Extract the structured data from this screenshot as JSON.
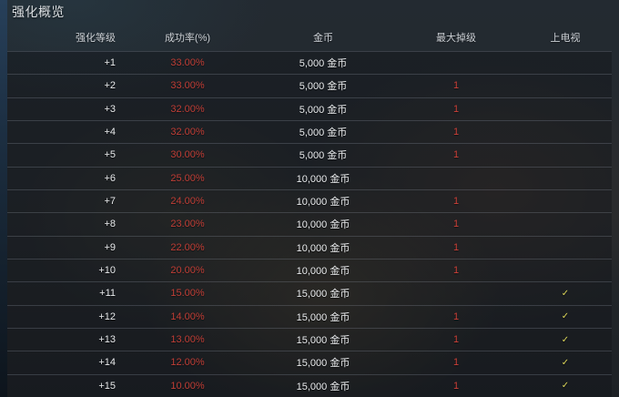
{
  "page": {
    "title": "强化概览"
  },
  "table": {
    "columns": [
      {
        "key": "level",
        "label": "强化等级"
      },
      {
        "key": "rate",
        "label": "成功率(%)"
      },
      {
        "key": "gold",
        "label": "金币"
      },
      {
        "key": "max_drop",
        "label": "最大掉级"
      },
      {
        "key": "tv",
        "label": "上电视"
      }
    ],
    "rows": [
      {
        "level": "+1",
        "rate": "33.00%",
        "gold": "5,000 金币",
        "max_drop": "",
        "tv": false
      },
      {
        "level": "+2",
        "rate": "33.00%",
        "gold": "5,000 金币",
        "max_drop": "1",
        "tv": false
      },
      {
        "level": "+3",
        "rate": "32.00%",
        "gold": "5,000 金币",
        "max_drop": "1",
        "tv": false
      },
      {
        "level": "+4",
        "rate": "32.00%",
        "gold": "5,000 金币",
        "max_drop": "1",
        "tv": false
      },
      {
        "level": "+5",
        "rate": "30.00%",
        "gold": "5,000 金币",
        "max_drop": "1",
        "tv": false
      },
      {
        "level": "+6",
        "rate": "25.00%",
        "gold": "10,000 金币",
        "max_drop": "",
        "tv": false
      },
      {
        "level": "+7",
        "rate": "24.00%",
        "gold": "10,000 金币",
        "max_drop": "1",
        "tv": false
      },
      {
        "level": "+8",
        "rate": "23.00%",
        "gold": "10,000 金币",
        "max_drop": "1",
        "tv": false
      },
      {
        "level": "+9",
        "rate": "22.00%",
        "gold": "10,000 金币",
        "max_drop": "1",
        "tv": false
      },
      {
        "level": "+10",
        "rate": "20.00%",
        "gold": "10,000 金币",
        "max_drop": "1",
        "tv": false
      },
      {
        "level": "+11",
        "rate": "15.00%",
        "gold": "15,000 金币",
        "max_drop": "",
        "tv": true
      },
      {
        "level": "+12",
        "rate": "14.00%",
        "gold": "15,000 金币",
        "max_drop": "1",
        "tv": true
      },
      {
        "level": "+13",
        "rate": "13.00%",
        "gold": "15,000 金币",
        "max_drop": "1",
        "tv": true
      },
      {
        "level": "+14",
        "rate": "12.00%",
        "gold": "15,000 金币",
        "max_drop": "1",
        "tv": true
      },
      {
        "level": "+15",
        "rate": "10.00%",
        "gold": "15,000 金币",
        "max_drop": "1",
        "tv": true
      }
    ],
    "check_icon": "✓",
    "colors": {
      "rate_red": "#bf3e36",
      "drop_red": "#cc4038",
      "check_yellow": "#ddd75a"
    }
  }
}
